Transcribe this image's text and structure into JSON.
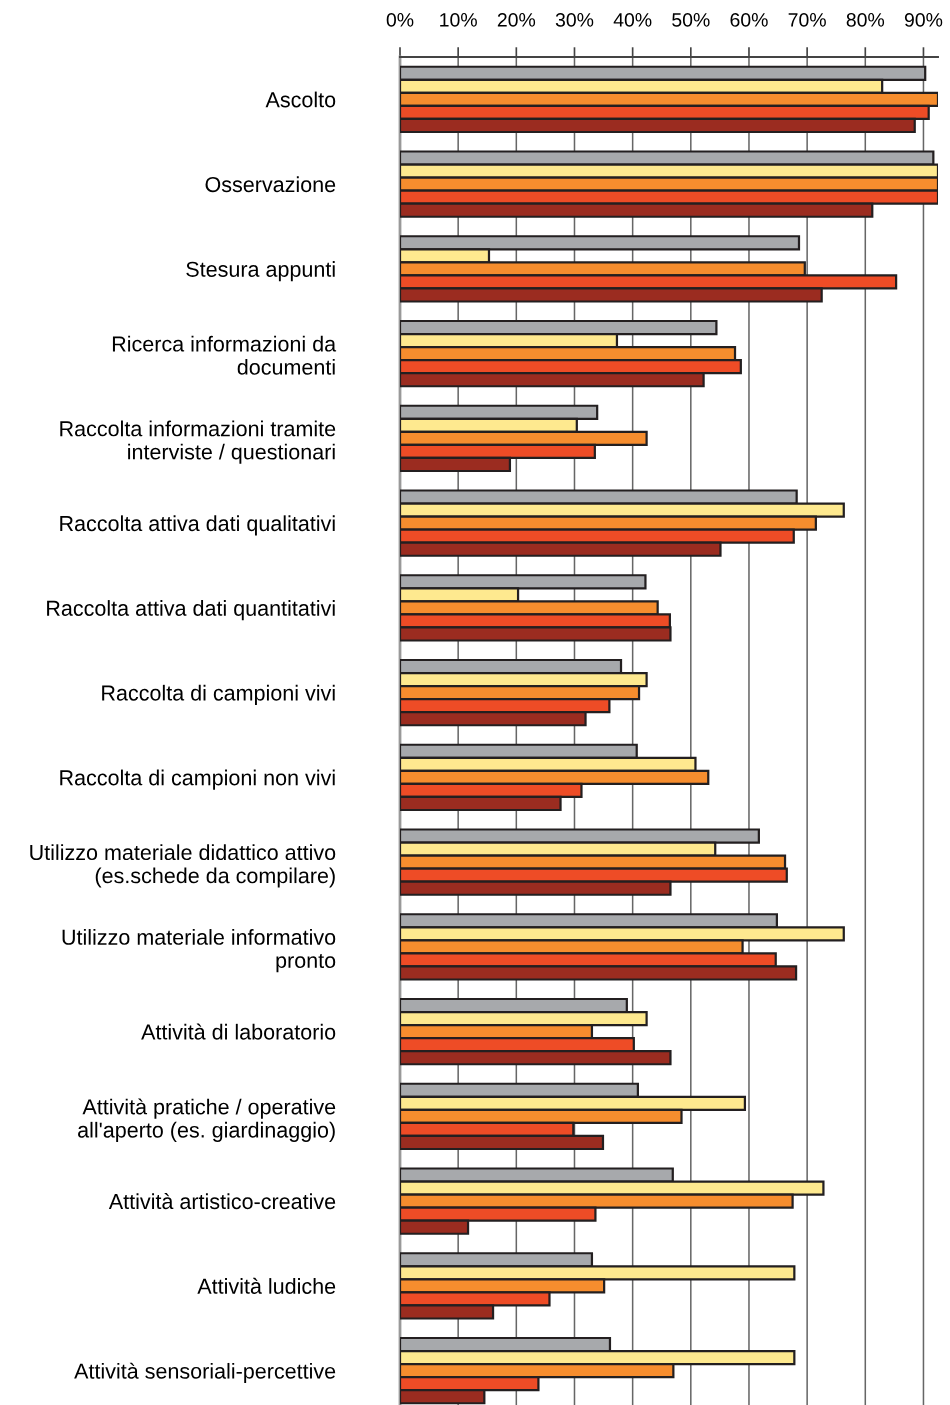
{
  "chart_data": {
    "type": "bar",
    "orientation": "horizontal",
    "categories": [
      "Ascolto",
      "Osservazione",
      "Stesura appunti",
      "Ricerca informazioni da\ndocumenti",
      "Raccolta informazioni tramite\ninterviste / questionari",
      "Raccolta attiva dati qualitativi",
      "Raccolta attiva dati quantitativi",
      "Raccolta di campioni vivi",
      "Raccolta di campioni non vivi",
      "Utilizzo materiale didattico attivo\n(es.schede da compilare)",
      "Utilizzo materiale informativo\npronto",
      "Attività di laboratorio",
      "Attività pratiche / operative\nall'aperto (es. giardinaggio)",
      "Attività artistico-creative",
      "Attività ludiche",
      "Attività sensoriali-percettive"
    ],
    "series": [
      {
        "color": "#a7a9ac",
        "values": [
          90.3,
          91.7,
          68.6,
          54.4,
          33.9,
          68.2,
          42.2,
          38.0,
          40.7,
          61.7,
          64.8,
          39.0,
          40.9,
          46.9,
          33.0,
          36.1
        ]
      },
      {
        "color": "#fee98f",
        "values": [
          82.9,
          92.5,
          15.3,
          37.3,
          30.4,
          76.3,
          20.3,
          42.4,
          50.8,
          54.2,
          76.3,
          42.4,
          59.3,
          72.8,
          67.8,
          67.8
        ]
      },
      {
        "color": "#f68d2e",
        "values": [
          92.5,
          92.5,
          69.6,
          57.6,
          42.4,
          71.5,
          44.3,
          41.1,
          53.0,
          66.2,
          58.9,
          33.0,
          48.4,
          67.5,
          35.1,
          47.0
        ]
      },
      {
        "color": "#ee4c26",
        "values": [
          90.9,
          92.5,
          85.3,
          58.6,
          33.5,
          67.7,
          46.4,
          36.0,
          31.2,
          66.5,
          64.6,
          40.2,
          29.8,
          33.6,
          25.7,
          23.8
        ]
      },
      {
        "color": "#9b2c20",
        "values": [
          88.5,
          81.2,
          72.5,
          52.2,
          18.9,
          55.1,
          46.5,
          31.9,
          27.6,
          46.5,
          68.1,
          46.5,
          34.9,
          11.7,
          16.0,
          14.5
        ]
      }
    ],
    "xlim": [
      0,
      92.5
    ],
    "xticks": [
      {
        "value": 0,
        "label": "0%"
      },
      {
        "value": 10,
        "label": "10%"
      },
      {
        "value": 20,
        "label": "20%"
      },
      {
        "value": 30,
        "label": "30%"
      },
      {
        "value": 40,
        "label": "40%"
      },
      {
        "value": 50,
        "label": "50%"
      },
      {
        "value": 60,
        "label": "60%"
      },
      {
        "value": 70,
        "label": "70%"
      },
      {
        "value": 80,
        "label": "80%"
      },
      {
        "value": 90,
        "label": "90%"
      }
    ],
    "grid": "x",
    "legend": false
  }
}
